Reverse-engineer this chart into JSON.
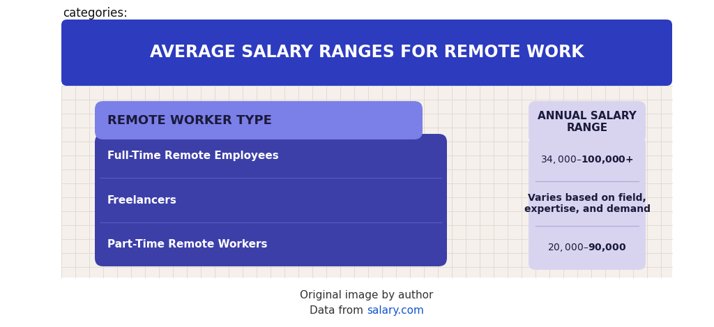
{
  "title": "AVERAGE SALARY RANGES FOR REMOTE WORK",
  "title_bg_color": "#2d3bbf",
  "title_text_color": "#ffffff",
  "body_bg_color": "#f5f0eb",
  "grid_color": "#e0d8d0",
  "left_header_text": "REMOTE WORKER TYPE",
  "left_header_bg": "#7b7fe8",
  "left_body_bg": "#3d3fa8",
  "right_header_text": "ANNUAL SALARY\nRANGE",
  "right_bg": "#d8d4f0",
  "rows": [
    {
      "type": "Full-Time Remote Employees",
      "salary": "$34,000 – $100,000+"
    },
    {
      "type": "Freelancers",
      "salary": "Varies based on field,\nexpertise, and demand"
    },
    {
      "type": "Part-Time Remote Workers",
      "salary": "$20,000 – $90,000"
    }
  ],
  "footer_text1": "Original image by author",
  "footer_text2": "Data from ",
  "footer_link": "salary.com",
  "footer_text_color": "#333333",
  "footer_link_color": "#1155cc",
  "top_text": "categories:",
  "top_text_color": "#111111"
}
